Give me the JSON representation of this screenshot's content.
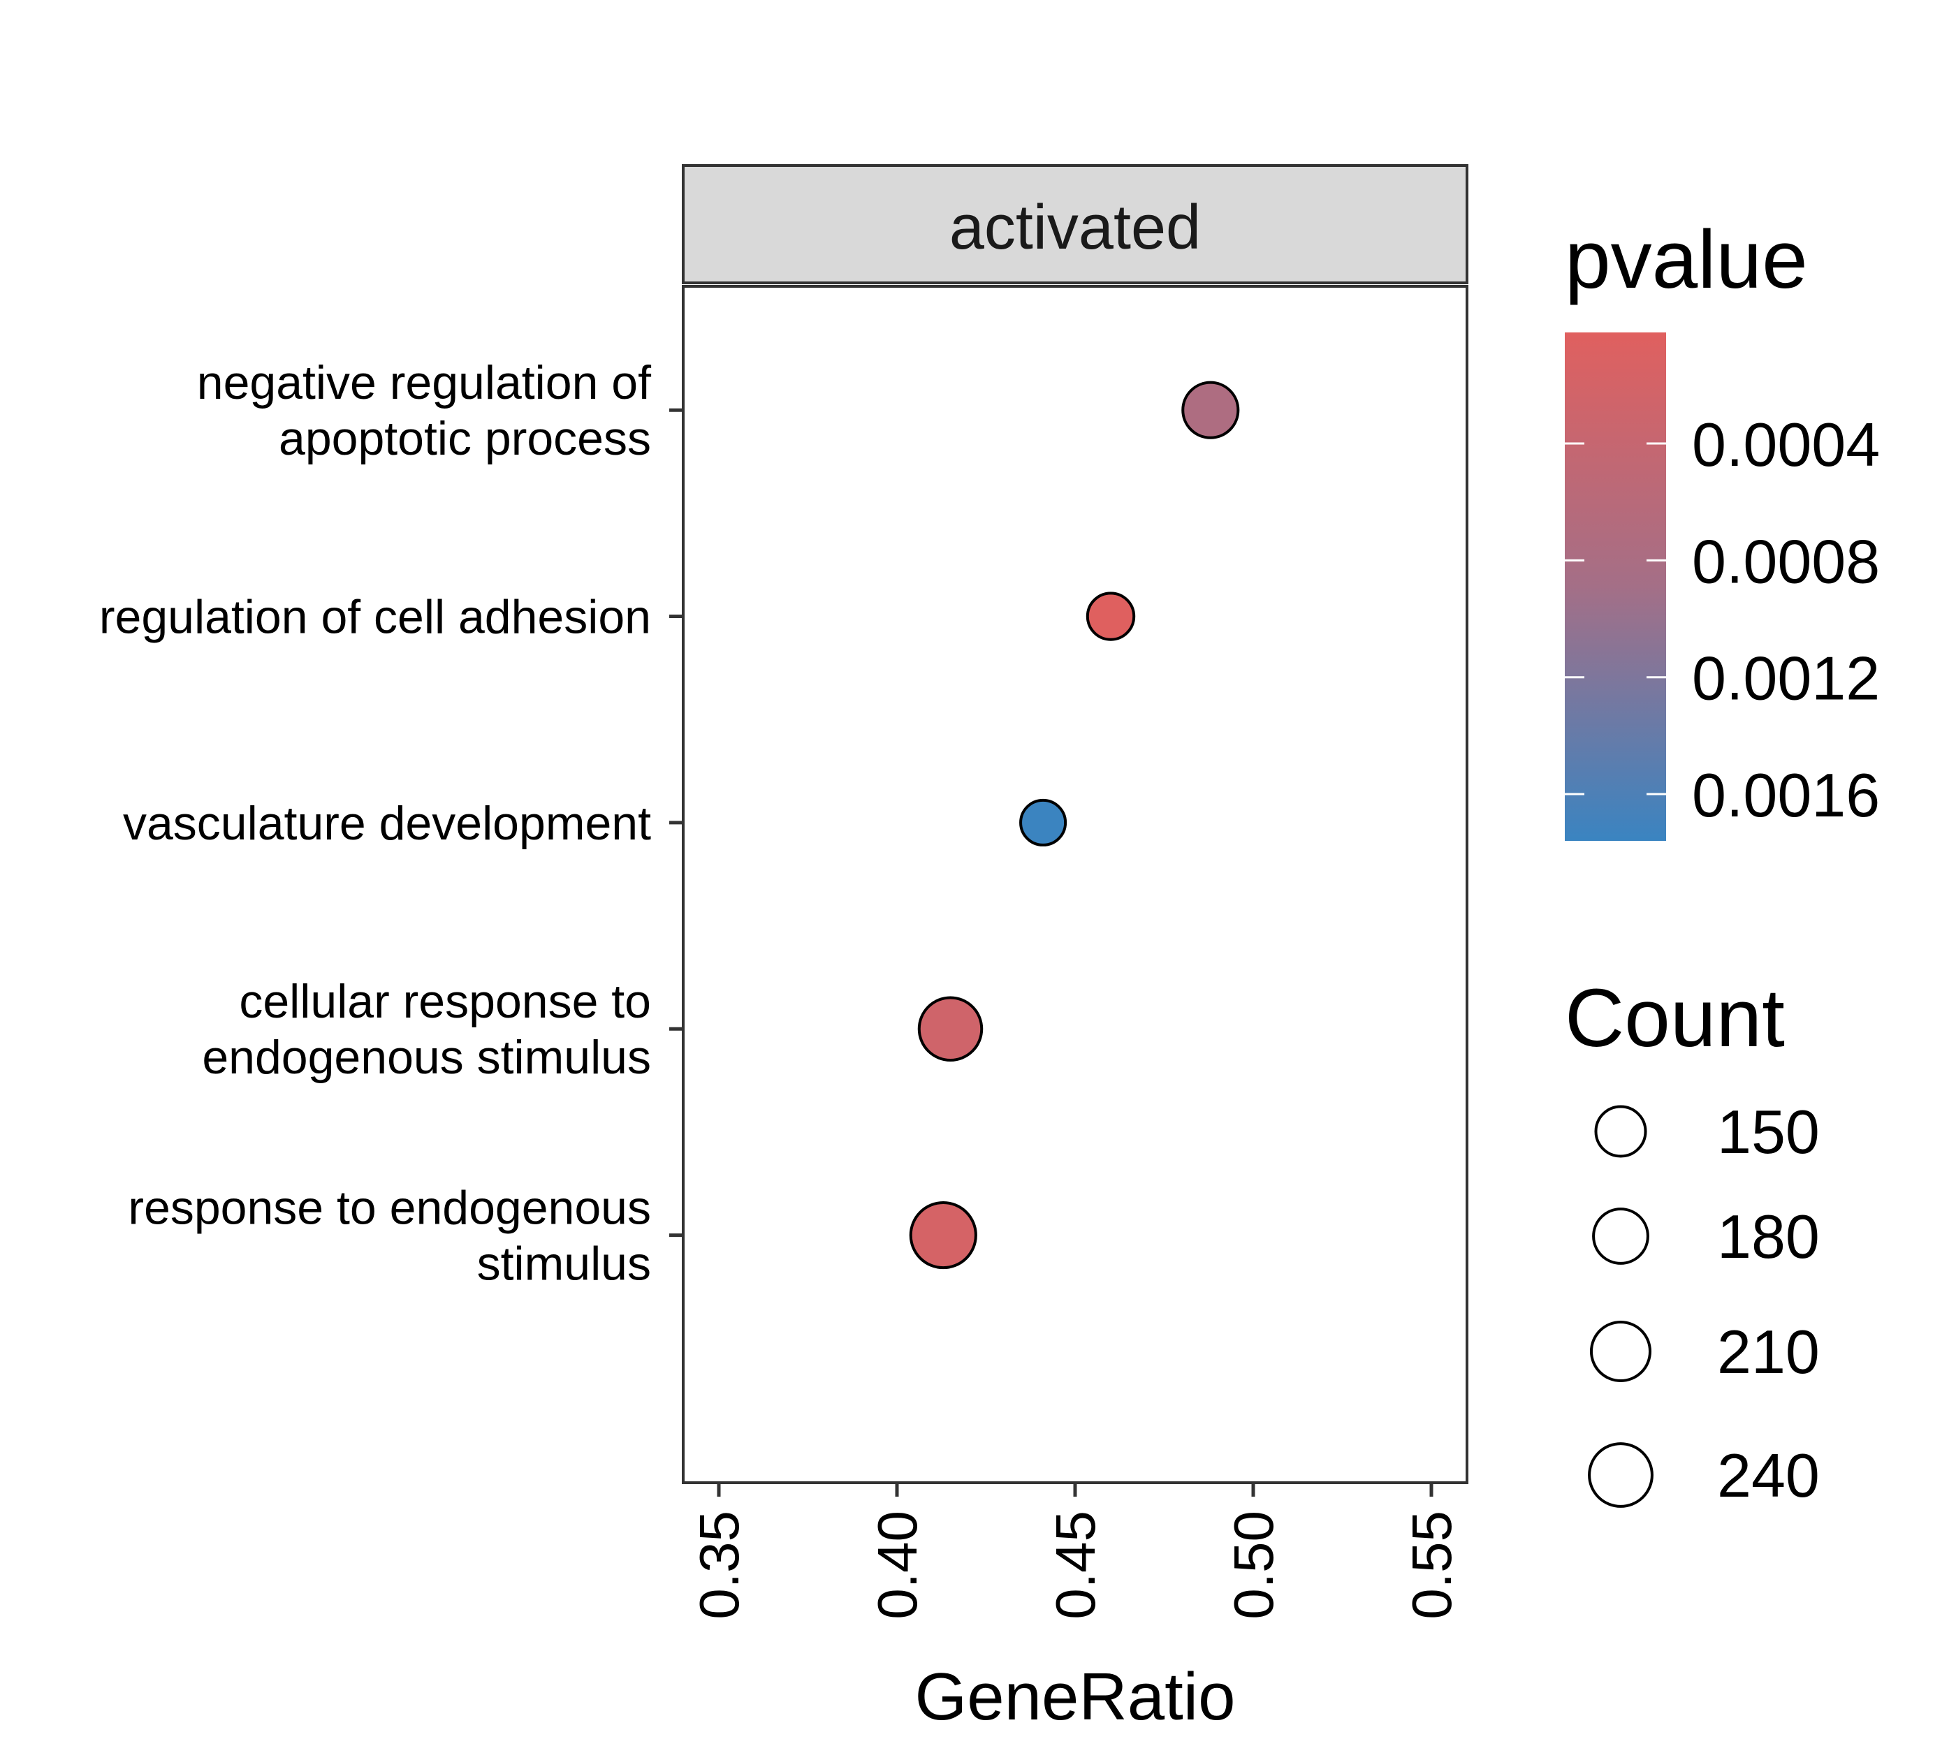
{
  "chart_data": {
    "type": "scatter",
    "facet": "activated",
    "xlabel": "GeneRatio",
    "ylabel": "",
    "xlim": [
      0.34,
      0.56
    ],
    "xticks": [
      0.35,
      0.4,
      0.45,
      0.5,
      0.55
    ],
    "xtick_labels": [
      "0.35",
      "0.40",
      "0.45",
      "0.50",
      "0.55"
    ],
    "categories": [
      "negative regulation of apoptotic process",
      "regulation of cell adhesion",
      "vasculature development",
      "cellular response to endogenous stimulus",
      "response to endogenous stimulus"
    ],
    "category_labels": [
      [
        "negative regulation of",
        "apoptotic process"
      ],
      [
        "regulation of cell adhesion"
      ],
      [
        "vasculature development"
      ],
      [
        "cellular response to",
        "endogenous stimulus"
      ],
      [
        "response to endogenous",
        "stimulus"
      ]
    ],
    "points": [
      {
        "term": "negative regulation of apoptotic process",
        "GeneRatio": 0.488,
        "Count": 186,
        "pvalue": 0.00075
      },
      {
        "term": "regulation of cell adhesion",
        "GeneRatio": 0.46,
        "Count": 131,
        "pvalue": 3e-05
      },
      {
        "term": "vasculature development",
        "GeneRatio": 0.441,
        "Count": 122,
        "pvalue": 0.00175
      },
      {
        "term": "cellular response to endogenous stimulus",
        "GeneRatio": 0.415,
        "Count": 238,
        "pvalue": 0.00027
      },
      {
        "term": "response to endogenous stimulus",
        "GeneRatio": 0.413,
        "Count": 258,
        "pvalue": 0.00018
      }
    ],
    "color_legend": {
      "title": "pvalue",
      "breaks": [
        0.0004,
        0.0008,
        0.0012,
        0.0016
      ],
      "labels": [
        "0.0004",
        "0.0008",
        "0.0012",
        "0.0016"
      ],
      "range": [
        2e-05,
        0.00176
      ],
      "low_color": "#e0605f",
      "high_color": "#3a84c1"
    },
    "size_legend": {
      "title": "Count",
      "breaks": [
        150,
        180,
        210,
        240
      ],
      "labels": [
        "150",
        "180",
        "210",
        "240"
      ]
    },
    "grid": false,
    "legend_position": "right"
  }
}
